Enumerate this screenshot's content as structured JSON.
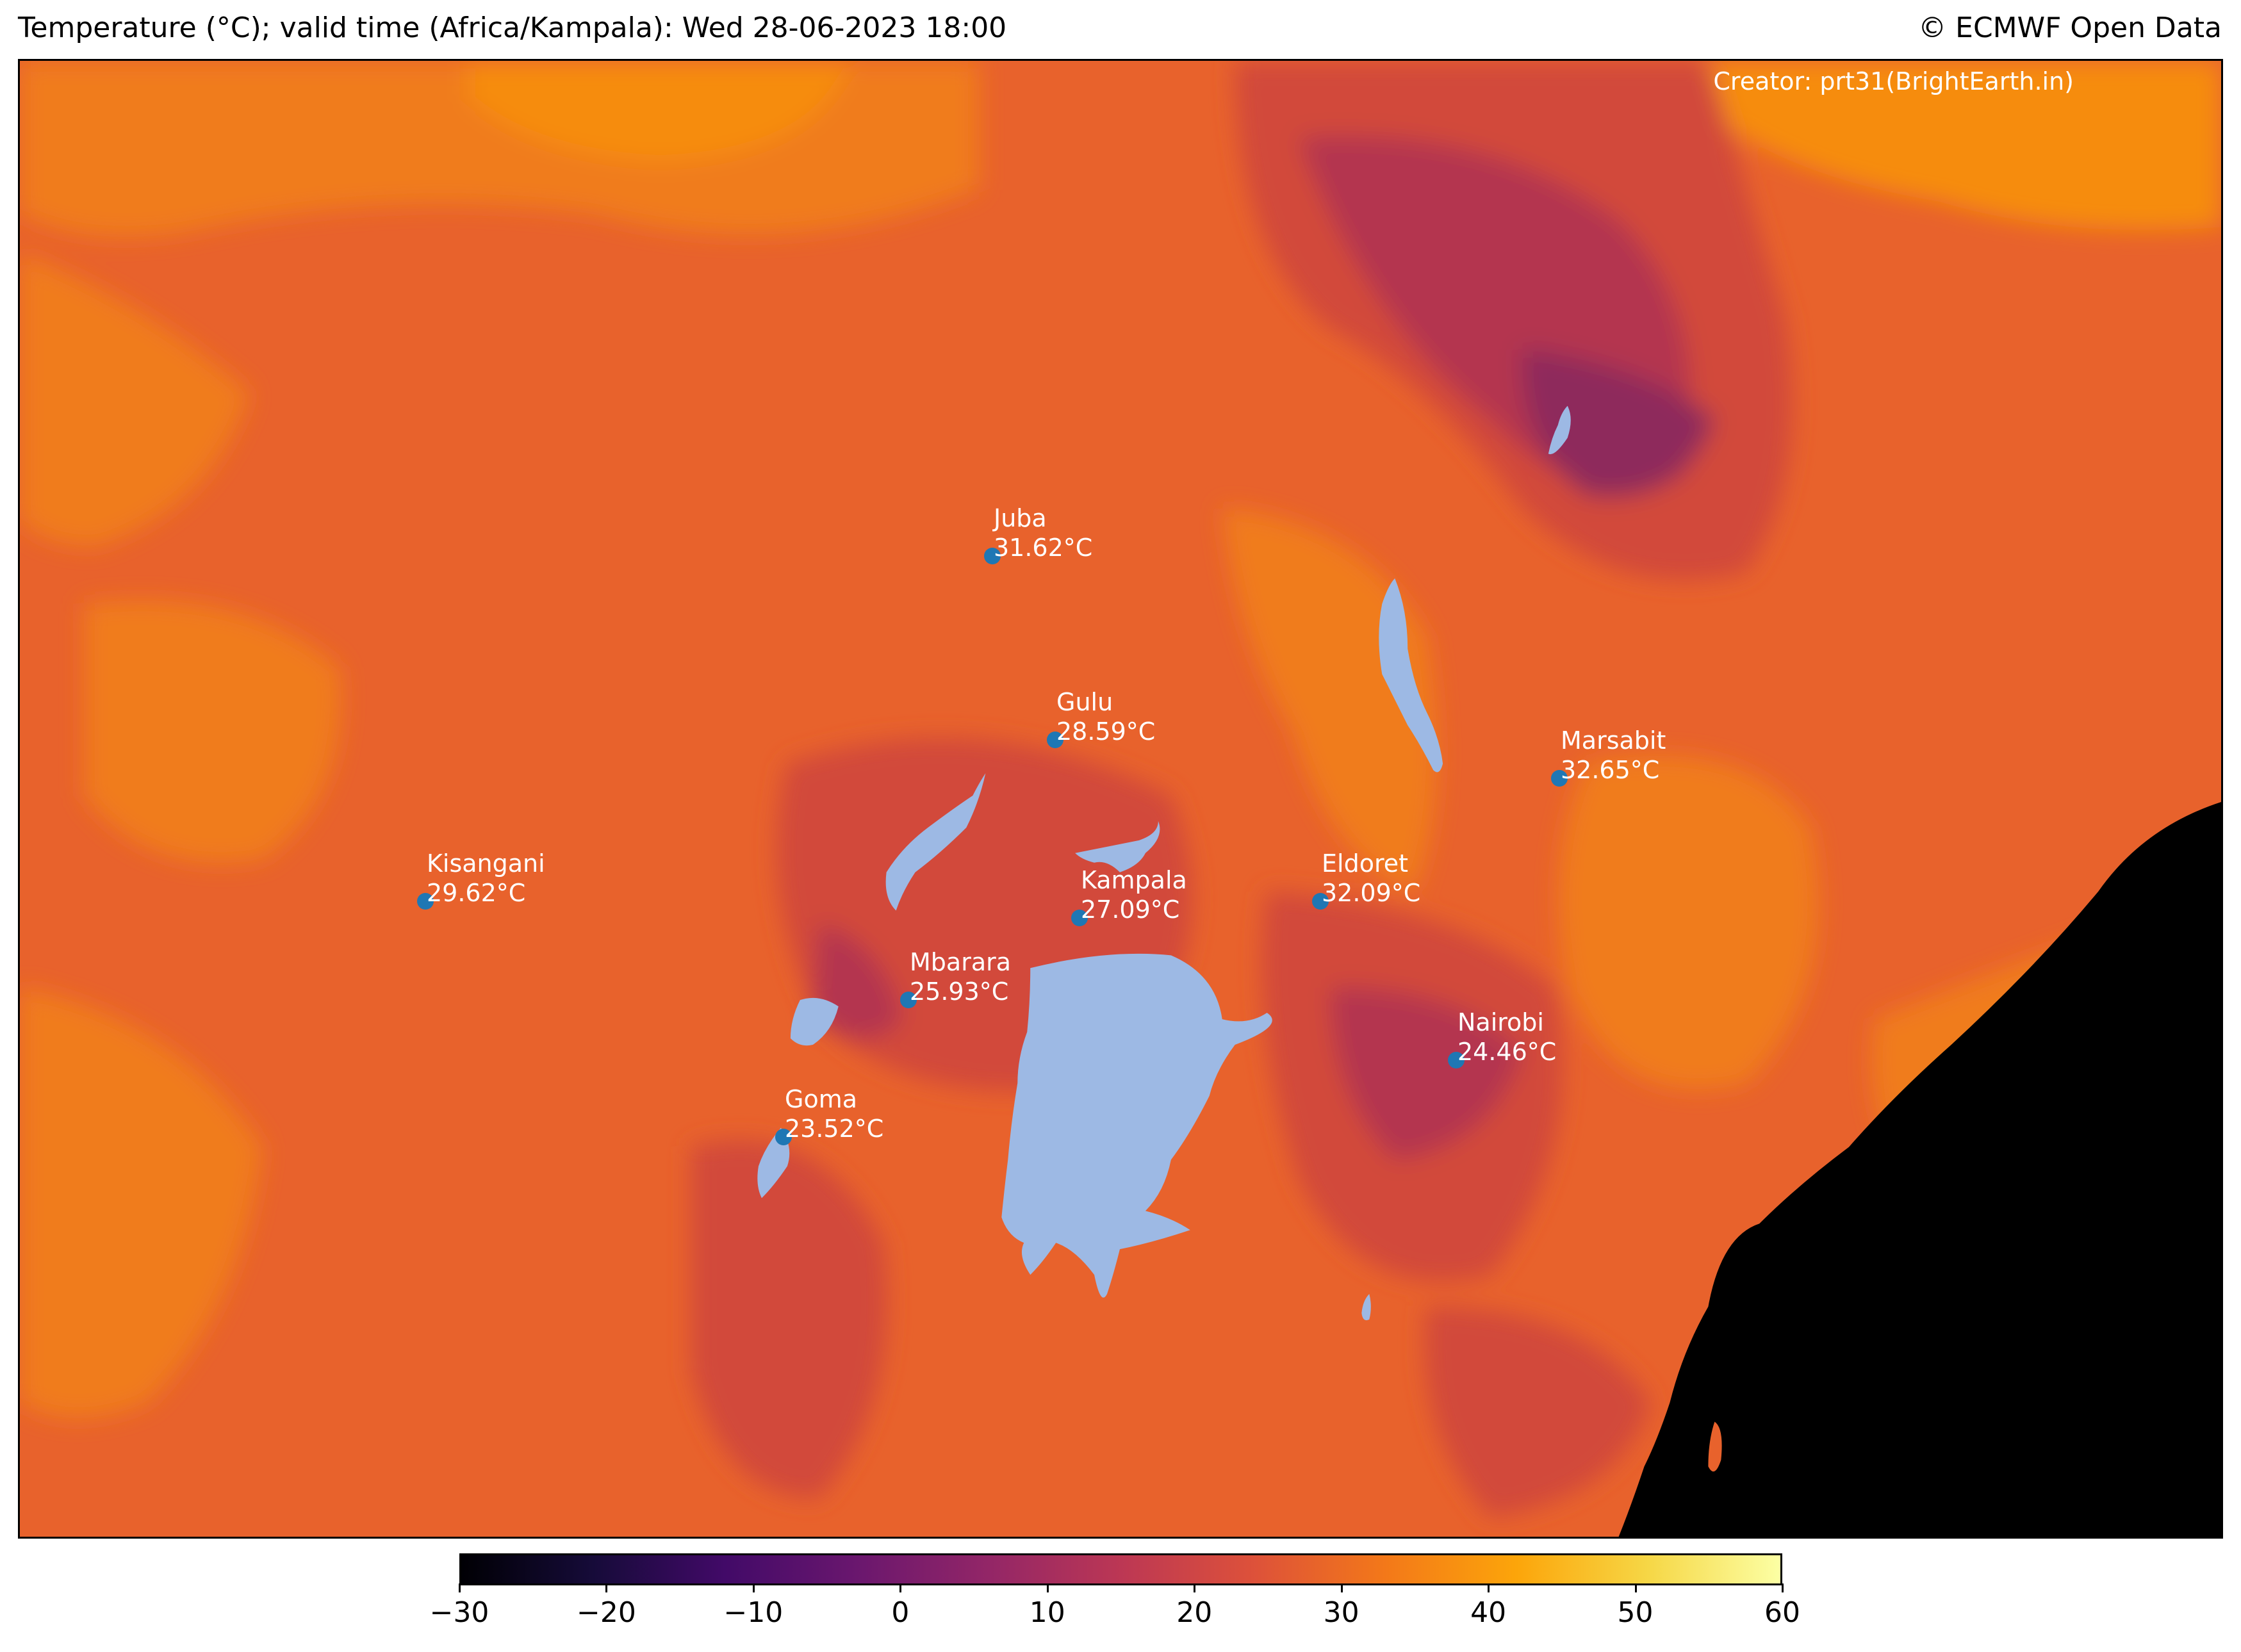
{
  "header": {
    "title": "Temperature (°C); valid time (Africa/Kampala): Wed 28-06-2023 18:00",
    "copyright": "© ECMWF Open Data"
  },
  "map": {
    "creator": "Creator: prt31(BrightEarth.in)",
    "colors": {
      "base": "#e8622c",
      "warm": "#f07c1c",
      "hot": "#f68c10",
      "cool": "#d2483a",
      "cold": "#b43550",
      "colder": "#8e2a5c",
      "water": "#9db9e4",
      "ocean": "#000000",
      "city_dot": "#1f77b4",
      "label": "#ffffff"
    },
    "cities": [
      {
        "name": "Juba",
        "temp": "31.62°C"
      },
      {
        "name": "Gulu",
        "temp": "28.59°C"
      },
      {
        "name": "Marsabit",
        "temp": "32.65°C"
      },
      {
        "name": "Kisangani",
        "temp": "29.62°C"
      },
      {
        "name": "Kampala",
        "temp": "27.09°C"
      },
      {
        "name": "Eldoret",
        "temp": "32.09°C"
      },
      {
        "name": "Mbarara",
        "temp": "25.93°C"
      },
      {
        "name": "Nairobi",
        "temp": "24.46°C"
      },
      {
        "name": "Goma",
        "temp": "23.52°C"
      }
    ]
  },
  "colorbar": {
    "min": -30,
    "max": 60,
    "colormap": "inferno",
    "ticks": [
      "−30",
      "−20",
      "−10",
      "0",
      "10",
      "20",
      "30",
      "40",
      "50",
      "60"
    ]
  }
}
